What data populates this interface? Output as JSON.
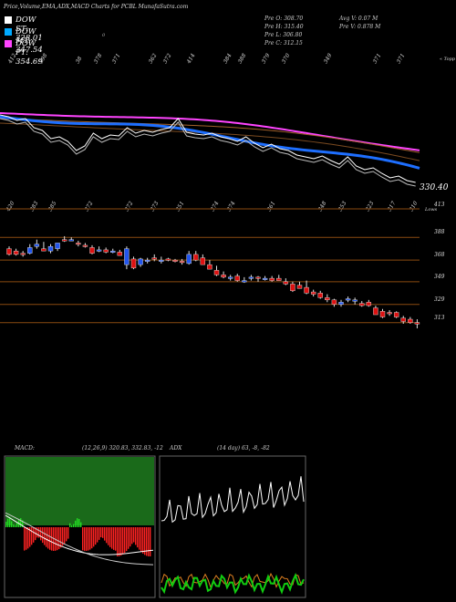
{
  "header": {
    "title": "Price,Volume,EMA,ADX,MACD Charts for PCBL MunafaSutra.com",
    "legend": [
      {
        "label": "DOW ST: 328.01",
        "color": "#ffffff"
      },
      {
        "label": "DOW MT: 347.54",
        "color": "#00aaff"
      },
      {
        "label": "DOW PT: 354.69",
        "color": "#ff44ff"
      }
    ],
    "stray_mark": "0",
    "ohlc": {
      "open": "Pre O: 308.70",
      "high": "Pre H: 315.40",
      "low": "Pre L: 306.80",
      "close": "Pre C: 312.15"
    },
    "volume": {
      "avg": "Avg V: 0.07 M",
      "pre": "Pre V: 0.878 M"
    }
  },
  "top_labels": [
    "412",
    "398",
    "38",
    "378",
    "371",
    "362",
    "372",
    "414",
    "384",
    "388",
    "379",
    "370",
    "349",
    "371",
    "371"
  ],
  "top_label_tail": "« Topp",
  "mid_labels": [
    "420",
    "383",
    "385",
    "372",
    "372",
    "373",
    "351",
    "374",
    "374",
    "361",
    "348",
    "353",
    "323",
    "317",
    "310"
  ],
  "mid_label_tail": "Lows",
  "last_price_label": "330.40",
  "colors": {
    "up": "#2255ee",
    "down": "#dd1111",
    "ema_st": "#ffffff",
    "ema_mt": "#1e6fff",
    "ema_pt": "#ff44ff",
    "grid": "#8a4a10",
    "adx_orange": "#e08020",
    "adx_green": "#11cc11",
    "macd_bg": "#1a6a1a",
    "macd_hist_neg": "#ff2222",
    "macd_hist_pos": "#22dd22"
  },
  "chart_data": [
    {
      "type": "candlestick",
      "title": "",
      "ylim": [
        308,
        413
      ],
      "levels": [
        388,
        368,
        349,
        329,
        313
      ],
      "level_labels": [
        "388",
        "368",
        "349",
        "329",
        "313"
      ],
      "top_level": "413",
      "candles": [
        {
          "o": 378,
          "h": 380,
          "l": 372,
          "c": 373
        },
        {
          "o": 376,
          "h": 378,
          "l": 372,
          "c": 373
        },
        {
          "o": 374,
          "h": 376,
          "l": 371,
          "c": 373
        },
        {
          "o": 374,
          "h": 382,
          "l": 373,
          "c": 379
        },
        {
          "o": 380,
          "h": 386,
          "l": 378,
          "c": 382
        },
        {
          "o": 378,
          "h": 384,
          "l": 376,
          "c": 376
        },
        {
          "o": 376,
          "h": 382,
          "l": 374,
          "c": 380
        },
        {
          "o": 378,
          "h": 383,
          "l": 376,
          "c": 383
        },
        {
          "o": 386,
          "h": 389,
          "l": 384,
          "c": 385
        },
        {
          "o": 386,
          "h": 388,
          "l": 385,
          "c": 386
        },
        {
          "o": 383,
          "h": 385,
          "l": 380,
          "c": 382
        },
        {
          "o": 381,
          "h": 383,
          "l": 379,
          "c": 380
        },
        {
          "o": 379,
          "h": 381,
          "l": 373,
          "c": 374
        },
        {
          "o": 377,
          "h": 380,
          "l": 375,
          "c": 377
        },
        {
          "o": 377,
          "h": 379,
          "l": 374,
          "c": 375
        },
        {
          "o": 376,
          "h": 378,
          "l": 374,
          "c": 376
        },
        {
          "o": 375,
          "h": 377,
          "l": 372,
          "c": 372
        },
        {
          "o": 364,
          "h": 380,
          "l": 360,
          "c": 378
        },
        {
          "o": 369,
          "h": 371,
          "l": 360,
          "c": 361
        },
        {
          "o": 364,
          "h": 370,
          "l": 362,
          "c": 369
        },
        {
          "o": 368,
          "h": 370,
          "l": 365,
          "c": 368
        },
        {
          "o": 370,
          "h": 373,
          "l": 367,
          "c": 369
        },
        {
          "o": 368,
          "h": 371,
          "l": 365,
          "c": 368
        },
        {
          "o": 369,
          "h": 370,
          "l": 367,
          "c": 368
        },
        {
          "o": 368,
          "h": 369,
          "l": 366,
          "c": 367
        },
        {
          "o": 367,
          "h": 369,
          "l": 364,
          "c": 366
        },
        {
          "o": 365,
          "h": 376,
          "l": 364,
          "c": 373
        },
        {
          "o": 373,
          "h": 376,
          "l": 367,
          "c": 368
        },
        {
          "o": 370,
          "h": 373,
          "l": 364,
          "c": 364
        },
        {
          "o": 364,
          "h": 368,
          "l": 360,
          "c": 360
        },
        {
          "o": 359,
          "h": 363,
          "l": 354,
          "c": 355
        },
        {
          "o": 355,
          "h": 358,
          "l": 352,
          "c": 353
        },
        {
          "o": 353,
          "h": 355,
          "l": 350,
          "c": 353
        },
        {
          "o": 354,
          "h": 356,
          "l": 349,
          "c": 350
        },
        {
          "o": 350,
          "h": 353,
          "l": 348,
          "c": 350
        },
        {
          "o": 352,
          "h": 355,
          "l": 350,
          "c": 353
        },
        {
          "o": 353,
          "h": 354,
          "l": 349,
          "c": 352
        },
        {
          "o": 352,
          "h": 354,
          "l": 350,
          "c": 352
        },
        {
          "o": 352,
          "h": 354,
          "l": 349,
          "c": 350
        },
        {
          "o": 352,
          "h": 355,
          "l": 350,
          "c": 350
        },
        {
          "o": 349,
          "h": 352,
          "l": 346,
          "c": 347
        },
        {
          "o": 347,
          "h": 349,
          "l": 340,
          "c": 341
        },
        {
          "o": 346,
          "h": 349,
          "l": 343,
          "c": 343
        },
        {
          "o": 344,
          "h": 350,
          "l": 338,
          "c": 339
        },
        {
          "o": 340,
          "h": 342,
          "l": 336,
          "c": 338
        },
        {
          "o": 339,
          "h": 341,
          "l": 334,
          "c": 335
        },
        {
          "o": 335,
          "h": 338,
          "l": 331,
          "c": 333
        },
        {
          "o": 333,
          "h": 334,
          "l": 327,
          "c": 329
        },
        {
          "o": 329,
          "h": 333,
          "l": 327,
          "c": 331
        },
        {
          "o": 333,
          "h": 336,
          "l": 331,
          "c": 334
        },
        {
          "o": 332,
          "h": 335,
          "l": 329,
          "c": 333
        },
        {
          "o": 330,
          "h": 332,
          "l": 327,
          "c": 328
        },
        {
          "o": 331,
          "h": 333,
          "l": 327,
          "c": 328
        },
        {
          "o": 326,
          "h": 328,
          "l": 320,
          "c": 320
        },
        {
          "o": 323,
          "h": 325,
          "l": 317,
          "c": 318
        },
        {
          "o": 322,
          "h": 324,
          "l": 319,
          "c": 321
        },
        {
          "o": 322,
          "h": 323,
          "l": 317,
          "c": 318
        },
        {
          "o": 317,
          "h": 319,
          "l": 312,
          "c": 314
        },
        {
          "o": 316,
          "h": 318,
          "l": 312,
          "c": 313
        },
        {
          "o": 313,
          "h": 316,
          "l": 308,
          "c": 312
        }
      ]
    },
    {
      "type": "line",
      "title": "",
      "series": [
        {
          "name": "DOW ST",
          "color": "#ffffff"
        },
        {
          "name": "DOW MT",
          "color": "#1e6fff"
        },
        {
          "name": "DOW PT",
          "color": "#ff44ff"
        }
      ]
    },
    {
      "type": "macd",
      "title": "MACD:",
      "values_text": "(12,26,9) 320.83, 332.83, -12"
    },
    {
      "type": "adx",
      "title": "ADX",
      "values_text": "(14 day) 63, -8, -82"
    }
  ]
}
